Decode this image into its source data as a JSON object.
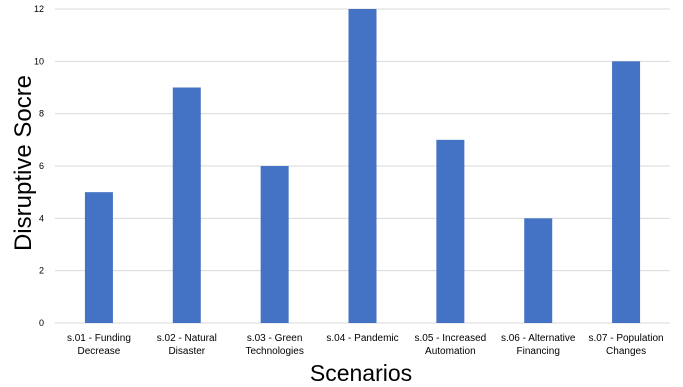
{
  "chart_data": {
    "type": "bar",
    "title": "",
    "xlabel": "Scenarios",
    "ylabel": "Disruptive Socre",
    "ylim": [
      0,
      12
    ],
    "yticks": [
      0,
      2,
      4,
      6,
      8,
      10,
      12
    ],
    "grid": true,
    "legend": "none",
    "bar_color": "#4472C4",
    "grid_color": "#d9d9d9",
    "categories": [
      [
        "s.01 - Funding",
        "Decrease"
      ],
      [
        "s.02 - Natural",
        "Disaster"
      ],
      [
        "s.03 - Green",
        "Technologies"
      ],
      [
        "s.04 - Pandemic"
      ],
      [
        "s.05 - Increased",
        "Automation"
      ],
      [
        "s.06 - Alternative",
        "Financing"
      ],
      [
        "s.07 - Population",
        "Changes"
      ]
    ],
    "values": [
      5,
      9,
      6,
      12,
      7,
      4,
      10
    ]
  }
}
